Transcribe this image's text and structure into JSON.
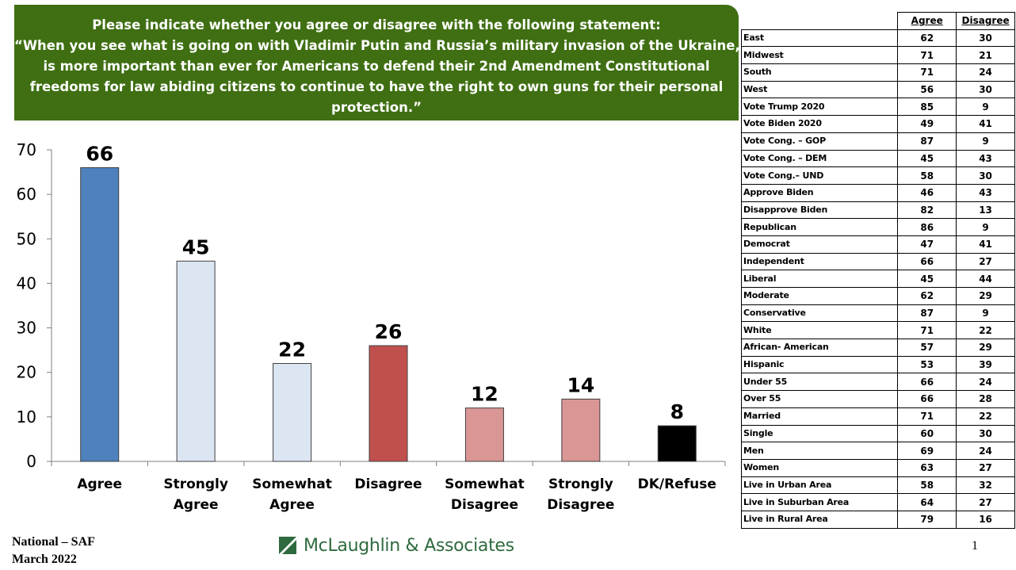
{
  "header": {
    "lines": [
      "Please indicate whether you agree or disagree with the following statement:",
      "“When you see what is going on with Vladimir Putin and Russia’s military invasion of the Ukraine, it",
      "is more important than ever for Americans to defend their 2nd Amendment Constitutional",
      "freedoms for law abiding citizens to continue to have the right to own guns for their personal",
      "protection.”"
    ]
  },
  "chart_data": {
    "type": "bar",
    "categories": [
      [
        "Agree"
      ],
      [
        "Strongly",
        "Agree"
      ],
      [
        "Somewhat",
        "Agree"
      ],
      [
        "Disagree"
      ],
      [
        "Somewhat",
        "Disagree"
      ],
      [
        "Strongly",
        "Disagree"
      ],
      [
        "DK/Refuse"
      ]
    ],
    "values": [
      66,
      45,
      22,
      26,
      12,
      14,
      8
    ],
    "colors": [
      "#4f81bd",
      "#dce6f2",
      "#dce6f2",
      "#c0504d",
      "#d99694",
      "#d99694",
      "#000000"
    ],
    "ylim": [
      0,
      70
    ],
    "yticks": [
      0,
      10,
      20,
      30,
      40,
      50,
      60,
      70
    ],
    "grid": false
  },
  "table": {
    "headers": [
      "Agree",
      "Disagree"
    ],
    "rows": [
      {
        "label": "East",
        "agree": "62",
        "disagree": "30"
      },
      {
        "label": "Midwest",
        "agree": "71",
        "disagree": "21"
      },
      {
        "label": "South",
        "agree": "71",
        "disagree": "24"
      },
      {
        "label": "West",
        "agree": "56",
        "disagree": "30"
      },
      {
        "label": "Vote Trump 2020",
        "agree": "85",
        "disagree": "9"
      },
      {
        "label": "Vote Biden 2020",
        "agree": "49",
        "disagree": "41"
      },
      {
        "label": "Vote Cong. – GOP",
        "agree": "87",
        "disagree": "9"
      },
      {
        "label": "Vote Cong. – DEM",
        "agree": "45",
        "disagree": "43"
      },
      {
        "label": "Vote Cong.– UND",
        "agree": "58",
        "disagree": "30"
      },
      {
        "label": "Approve Biden",
        "agree": "46",
        "disagree": "43"
      },
      {
        "label": "Disapprove Biden",
        "agree": "82",
        "disagree": "13"
      },
      {
        "label": "Republican",
        "agree": "86",
        "disagree": "9"
      },
      {
        "label": "Democrat",
        "agree": "47",
        "disagree": "41"
      },
      {
        "label": "Independent",
        "agree": "66",
        "disagree": "27"
      },
      {
        "label": "Liberal",
        "agree": "45",
        "disagree": "44"
      },
      {
        "label": "Moderate",
        "agree": "62",
        "disagree": "29"
      },
      {
        "label": "Conservative",
        "agree": "87",
        "disagree": "9"
      },
      {
        "label": "White",
        "agree": "71",
        "disagree": "22"
      },
      {
        "label": "African- American",
        "agree": "57",
        "disagree": "29"
      },
      {
        "label": "Hispanic",
        "agree": "53",
        "disagree": "39"
      },
      {
        "label": "Under 55",
        "agree": "66",
        "disagree": "24"
      },
      {
        "label": "Over 55",
        "agree": "66",
        "disagree": "28"
      },
      {
        "label": "Married",
        "agree": "71",
        "disagree": "22"
      },
      {
        "label": "Single",
        "agree": "60",
        "disagree": "30"
      },
      {
        "label": "Men",
        "agree": "69",
        "disagree": "24"
      },
      {
        "label": "Women",
        "agree": "63",
        "disagree": "27"
      },
      {
        "label": "Live in Urban Area",
        "agree": "58",
        "disagree": "32"
      },
      {
        "label": "Live in Suburban Area",
        "agree": "64",
        "disagree": "27"
      },
      {
        "label": "Live in Rural Area",
        "agree": "79",
        "disagree": "16"
      }
    ]
  },
  "footer": {
    "line1": "National – SAF",
    "line2": "March 2022",
    "logo_text": "McLaughlin & Associates",
    "page_number": "1",
    "logo_color": "#2e6a3e"
  }
}
